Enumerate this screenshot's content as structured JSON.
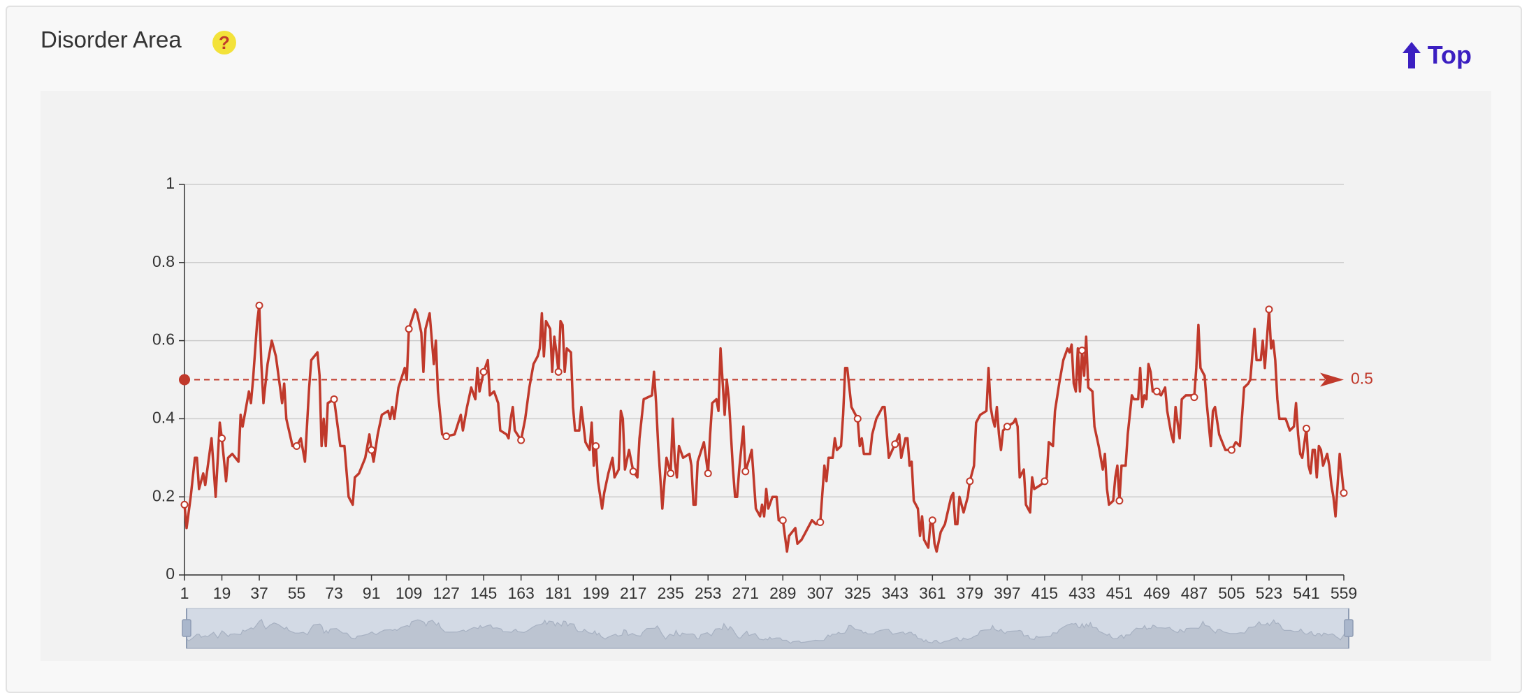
{
  "header": {
    "title": "Disorder Area",
    "help_icon": "?",
    "top_link": "Top"
  },
  "chart_data": {
    "type": "line",
    "color": "#c0392b",
    "threshold": 0.5,
    "xlim": [
      1,
      559
    ],
    "xticks": [
      1,
      19,
      37,
      55,
      73,
      91,
      109,
      127,
      145,
      163,
      181,
      199,
      217,
      235,
      253,
      271,
      289,
      307,
      325,
      343,
      361,
      379,
      397,
      415,
      433,
      451,
      469,
      487,
      505,
      523,
      541,
      559
    ],
    "ylim": [
      0,
      1
    ],
    "yticks": [
      0,
      0.2,
      0.4,
      0.6,
      0.8,
      1
    ],
    "grid": true,
    "x": [
      1,
      2,
      4,
      6,
      7,
      8,
      10,
      11,
      12,
      14,
      16,
      18,
      19,
      21,
      22,
      24,
      27,
      28,
      29,
      32,
      33,
      34,
      36,
      37,
      38,
      39,
      41,
      43,
      45,
      47,
      48,
      49,
      50,
      53,
      55,
      57,
      59,
      61,
      62,
      65,
      66,
      67,
      68,
      69,
      70,
      73,
      75,
      76,
      78,
      80,
      82,
      83,
      85,
      88,
      90,
      91,
      92,
      94,
      96,
      99,
      100,
      101,
      102,
      104,
      107,
      108,
      109,
      112,
      113,
      115,
      116,
      117,
      119,
      121,
      122,
      123,
      125,
      127,
      131,
      134,
      135,
      137,
      139,
      141,
      142,
      143,
      145,
      147,
      148,
      150,
      152,
      153,
      156,
      157,
      158,
      159,
      160,
      163,
      165,
      167,
      169,
      171,
      172,
      173,
      174,
      175,
      177,
      178,
      179,
      180,
      181,
      182,
      183,
      184,
      185,
      187,
      188,
      189,
      191,
      192,
      194,
      196,
      197,
      198,
      199,
      200,
      202,
      203,
      205,
      207,
      208,
      210,
      211,
      212,
      213,
      215,
      217,
      219,
      220,
      222,
      226,
      227,
      228,
      229,
      231,
      232,
      233,
      235,
      236,
      237,
      238,
      239,
      241,
      244,
      245,
      246,
      247,
      248,
      251,
      253,
      254,
      255,
      257,
      258,
      259,
      261,
      262,
      263,
      265,
      266,
      267,
      268,
      270,
      271,
      273,
      274,
      276,
      278,
      279,
      280,
      281,
      282,
      284,
      286,
      287,
      289,
      291,
      292,
      295,
      296,
      298,
      300,
      303,
      305,
      307,
      309,
      310,
      311,
      313,
      314,
      315,
      317,
      318,
      319,
      320,
      322,
      325,
      326,
      327,
      328,
      331,
      332,
      334,
      337,
      338,
      340,
      343,
      345,
      346,
      348,
      349,
      350,
      351,
      352,
      354,
      355,
      356,
      357,
      359,
      360,
      361,
      362,
      363,
      365,
      367,
      370,
      371,
      372,
      373,
      374,
      376,
      378,
      379,
      381,
      382,
      384,
      387,
      388,
      389,
      390,
      391,
      392,
      393,
      394,
      395,
      397,
      400,
      401,
      402,
      403,
      405,
      406,
      408,
      409,
      410,
      413,
      415,
      416,
      417,
      419,
      420,
      422,
      424,
      426,
      427,
      428,
      429,
      430,
      431,
      432,
      433,
      434,
      435,
      436,
      438,
      439,
      441,
      443,
      444,
      445,
      446,
      448,
      449,
      450,
      451,
      452,
      454,
      455,
      457,
      458,
      460,
      461,
      462,
      463,
      464,
      465,
      466,
      467,
      469,
      471,
      473,
      474,
      476,
      477,
      478,
      480,
      481,
      483,
      486,
      487,
      488,
      489,
      490,
      492,
      493,
      495,
      496,
      497,
      499,
      502,
      505,
      507,
      509,
      511,
      513,
      514,
      516,
      517,
      519,
      520,
      521,
      523,
      524,
      525,
      526,
      527,
      528,
      531,
      533,
      535,
      536,
      537,
      538,
      539,
      541,
      542,
      543,
      544,
      545,
      546,
      547,
      548,
      549,
      551,
      552,
      553,
      554,
      555,
      557,
      559
    ],
    "values": [
      0.18,
      0.12,
      0.2,
      0.3,
      0.3,
      0.22,
      0.26,
      0.23,
      0.27,
      0.35,
      0.2,
      0.39,
      0.35,
      0.24,
      0.3,
      0.31,
      0.29,
      0.41,
      0.38,
      0.47,
      0.44,
      0.5,
      0.65,
      0.69,
      0.54,
      0.44,
      0.54,
      0.6,
      0.56,
      0.48,
      0.44,
      0.49,
      0.4,
      0.33,
      0.33,
      0.35,
      0.29,
      0.48,
      0.55,
      0.57,
      0.51,
      0.33,
      0.4,
      0.33,
      0.44,
      0.45,
      0.37,
      0.33,
      0.33,
      0.2,
      0.18,
      0.25,
      0.26,
      0.3,
      0.36,
      0.32,
      0.29,
      0.36,
      0.41,
      0.42,
      0.4,
      0.43,
      0.4,
      0.48,
      0.53,
      0.5,
      0.63,
      0.68,
      0.67,
      0.62,
      0.52,
      0.63,
      0.67,
      0.54,
      0.6,
      0.47,
      0.36,
      0.355,
      0.36,
      0.41,
      0.37,
      0.43,
      0.48,
      0.45,
      0.53,
      0.47,
      0.52,
      0.55,
      0.46,
      0.47,
      0.44,
      0.37,
      0.36,
      0.35,
      0.4,
      0.43,
      0.37,
      0.345,
      0.4,
      0.48,
      0.54,
      0.56,
      0.58,
      0.67,
      0.56,
      0.65,
      0.63,
      0.52,
      0.61,
      0.57,
      0.52,
      0.65,
      0.64,
      0.52,
      0.58,
      0.57,
      0.43,
      0.37,
      0.37,
      0.43,
      0.34,
      0.32,
      0.39,
      0.28,
      0.33,
      0.24,
      0.17,
      0.21,
      0.26,
      0.3,
      0.25,
      0.27,
      0.42,
      0.4,
      0.27,
      0.32,
      0.265,
      0.25,
      0.35,
      0.45,
      0.46,
      0.52,
      0.44,
      0.33,
      0.17,
      0.24,
      0.3,
      0.26,
      0.4,
      0.29,
      0.25,
      0.33,
      0.3,
      0.31,
      0.28,
      0.18,
      0.18,
      0.29,
      0.34,
      0.26,
      0.36,
      0.44,
      0.45,
      0.42,
      0.58,
      0.41,
      0.5,
      0.45,
      0.27,
      0.2,
      0.2,
      0.27,
      0.38,
      0.265,
      0.3,
      0.32,
      0.17,
      0.15,
      0.18,
      0.15,
      0.22,
      0.17,
      0.2,
      0.2,
      0.14,
      0.14,
      0.06,
      0.1,
      0.12,
      0.08,
      0.09,
      0.11,
      0.14,
      0.13,
      0.135,
      0.28,
      0.24,
      0.3,
      0.3,
      0.35,
      0.32,
      0.33,
      0.41,
      0.53,
      0.53,
      0.43,
      0.4,
      0.33,
      0.35,
      0.31,
      0.31,
      0.36,
      0.4,
      0.43,
      0.43,
      0.3,
      0.335,
      0.36,
      0.3,
      0.35,
      0.35,
      0.28,
      0.29,
      0.19,
      0.17,
      0.1,
      0.15,
      0.09,
      0.07,
      0.13,
      0.14,
      0.08,
      0.06,
      0.11,
      0.13,
      0.2,
      0.21,
      0.13,
      0.13,
      0.2,
      0.16,
      0.2,
      0.24,
      0.28,
      0.39,
      0.41,
      0.42,
      0.53,
      0.43,
      0.4,
      0.38,
      0.43,
      0.36,
      0.32,
      0.37,
      0.38,
      0.39,
      0.4,
      0.38,
      0.25,
      0.27,
      0.18,
      0.16,
      0.25,
      0.22,
      0.23,
      0.24,
      0.25,
      0.34,
      0.33,
      0.42,
      0.49,
      0.55,
      0.58,
      0.57,
      0.59,
      0.49,
      0.47,
      0.58,
      0.47,
      0.575,
      0.51,
      0.61,
      0.48,
      0.47,
      0.38,
      0.33,
      0.27,
      0.31,
      0.22,
      0.18,
      0.19,
      0.25,
      0.28,
      0.19,
      0.28,
      0.28,
      0.36,
      0.46,
      0.45,
      0.45,
      0.53,
      0.43,
      0.46,
      0.45,
      0.54,
      0.52,
      0.47,
      0.47,
      0.46,
      0.48,
      0.42,
      0.36,
      0.34,
      0.43,
      0.35,
      0.45,
      0.46,
      0.46,
      0.455,
      0.53,
      0.64,
      0.53,
      0.51,
      0.44,
      0.33,
      0.42,
      0.43,
      0.36,
      0.32,
      0.32,
      0.34,
      0.33,
      0.48,
      0.49,
      0.5,
      0.63,
      0.55,
      0.55,
      0.6,
      0.53,
      0.68,
      0.58,
      0.6,
      0.55,
      0.45,
      0.4,
      0.4,
      0.37,
      0.38,
      0.44,
      0.36,
      0.31,
      0.3,
      0.375,
      0.28,
      0.26,
      0.32,
      0.32,
      0.25,
      0.33,
      0.32,
      0.28,
      0.31,
      0.28,
      0.23,
      0.2,
      0.15,
      0.31,
      0.21
    ]
  }
}
